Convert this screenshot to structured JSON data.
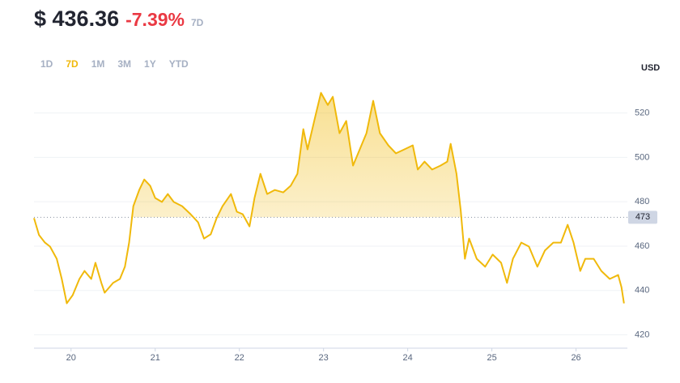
{
  "header": {
    "price": "$ 436.36",
    "change": "-7.39%",
    "period": "7D"
  },
  "tabs": [
    "1D",
    "7D",
    "1M",
    "3M",
    "1Y",
    "YTD"
  ],
  "active_tab": 1,
  "chart_data": {
    "type": "line",
    "y_axis_label": "USD",
    "color": "#f0b90b",
    "grid": true,
    "baseline": 473,
    "xlim": [
      19.56,
      26.61
    ],
    "xticks": [
      20,
      21,
      22,
      23,
      24,
      25,
      26
    ],
    "ylim": [
      414,
      541
    ],
    "yticks": [
      420,
      440,
      460,
      480,
      500,
      520
    ],
    "x": [
      19.56,
      19.62,
      19.69,
      19.75,
      19.83,
      19.89,
      19.95,
      20.02,
      20.1,
      20.16,
      20.24,
      20.29,
      20.36,
      20.4,
      20.5,
      20.58,
      20.64,
      20.69,
      20.74,
      20.81,
      20.87,
      20.94,
      21.0,
      21.08,
      21.15,
      21.22,
      21.32,
      21.42,
      21.51,
      21.58,
      21.66,
      21.73,
      21.8,
      21.9,
      21.97,
      22.04,
      22.12,
      22.18,
      22.25,
      22.33,
      22.42,
      22.52,
      22.61,
      22.69,
      22.76,
      22.81,
      22.9,
      22.97,
      23.05,
      23.11,
      23.19,
      23.27,
      23.35,
      23.43,
      23.51,
      23.59,
      23.67,
      23.77,
      23.86,
      23.96,
      24.06,
      24.12,
      24.2,
      24.29,
      24.39,
      24.47,
      24.51,
      24.58,
      24.63,
      24.68,
      24.73,
      24.82,
      24.92,
      25.01,
      25.11,
      25.18,
      25.25,
      25.35,
      25.44,
      25.54,
      25.63,
      25.73,
      25.82,
      25.9,
      25.97,
      26.05,
      26.11,
      26.21,
      26.3,
      26.4,
      26.5,
      26.54,
      26.57
    ],
    "values": [
      472.6,
      465,
      461.6,
      459.8,
      454.3,
      445.2,
      434.2,
      437.9,
      445.2,
      448.8,
      445.2,
      452.5,
      443.4,
      439,
      443.4,
      445.2,
      450.7,
      461.6,
      478,
      485.3,
      490,
      487.2,
      481.7,
      479.9,
      483.5,
      479.9,
      478,
      474.4,
      470.7,
      463.4,
      465.3,
      472.6,
      478,
      483.5,
      475.5,
      474.4,
      468.9,
      481.7,
      492.6,
      483.5,
      485.3,
      484.2,
      487.2,
      492.6,
      512.7,
      503.6,
      518.2,
      529.1,
      523.6,
      527.3,
      510.9,
      516.4,
      496.3,
      503.6,
      510.9,
      525.5,
      510.9,
      505.4,
      501.8,
      503.6,
      505.4,
      494.5,
      498.1,
      494.5,
      496.3,
      498.1,
      506.1,
      492.6,
      476.2,
      454.3,
      463.4,
      454.3,
      450.7,
      456.2,
      452.5,
      443.4,
      454.3,
      461.6,
      459.8,
      450.7,
      458,
      461.6,
      461.6,
      469.6,
      461.6,
      448.8,
      454.3,
      454.3,
      448.8,
      445.2,
      447,
      441.5,
      434.2
    ]
  }
}
